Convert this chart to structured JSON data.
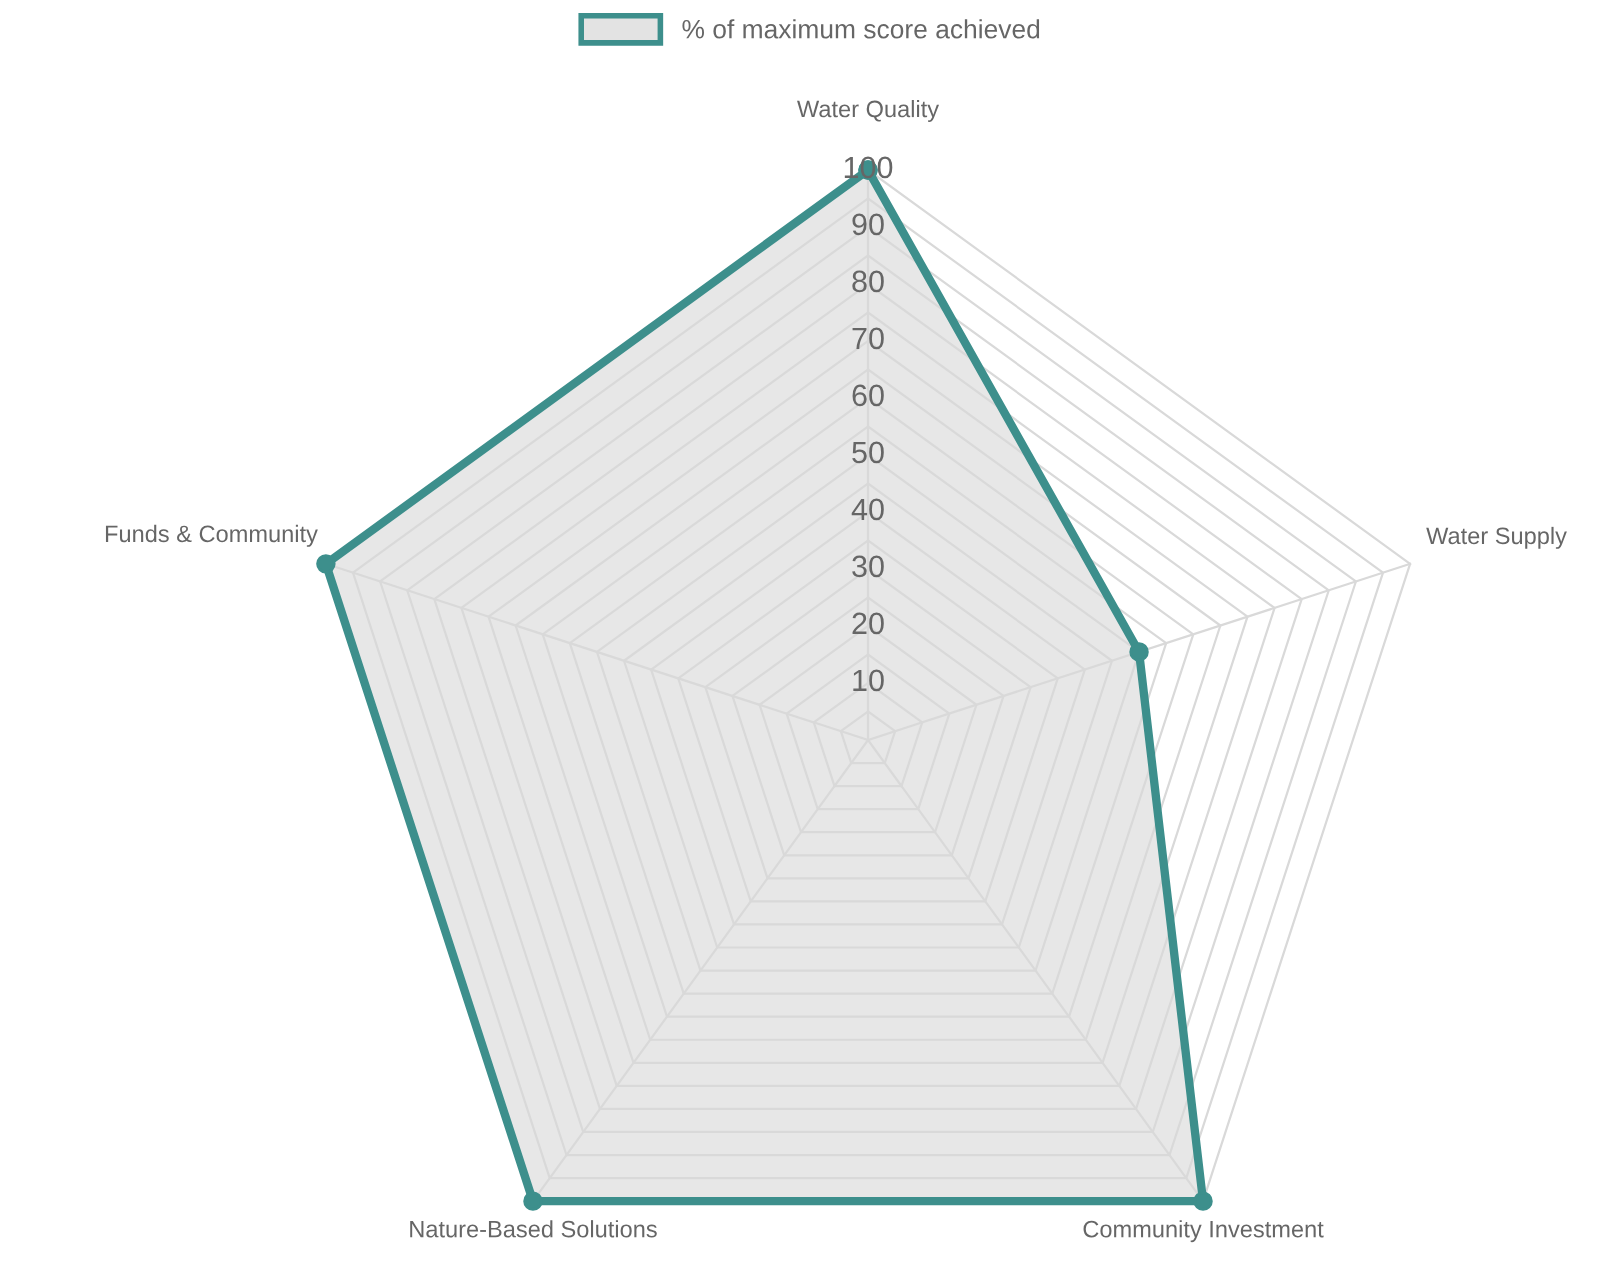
{
  "chart_data": {
    "type": "radar",
    "categories": [
      "Water Quality",
      "Water Supply",
      "Community Investment",
      "Nature-Based Solutions",
      "Funds & Community"
    ],
    "series": [
      {
        "name": "% of maximum score achieved",
        "color": "#3d8f8c",
        "values": [
          100,
          50,
          100,
          100,
          100
        ]
      }
    ],
    "ylim": [
      0,
      100
    ],
    "yticks": [
      10,
      20,
      30,
      40,
      50,
      60,
      70,
      80,
      90,
      100
    ],
    "grid": true,
    "legend": "top",
    "marker": "circle",
    "line_style": "solid"
  }
}
